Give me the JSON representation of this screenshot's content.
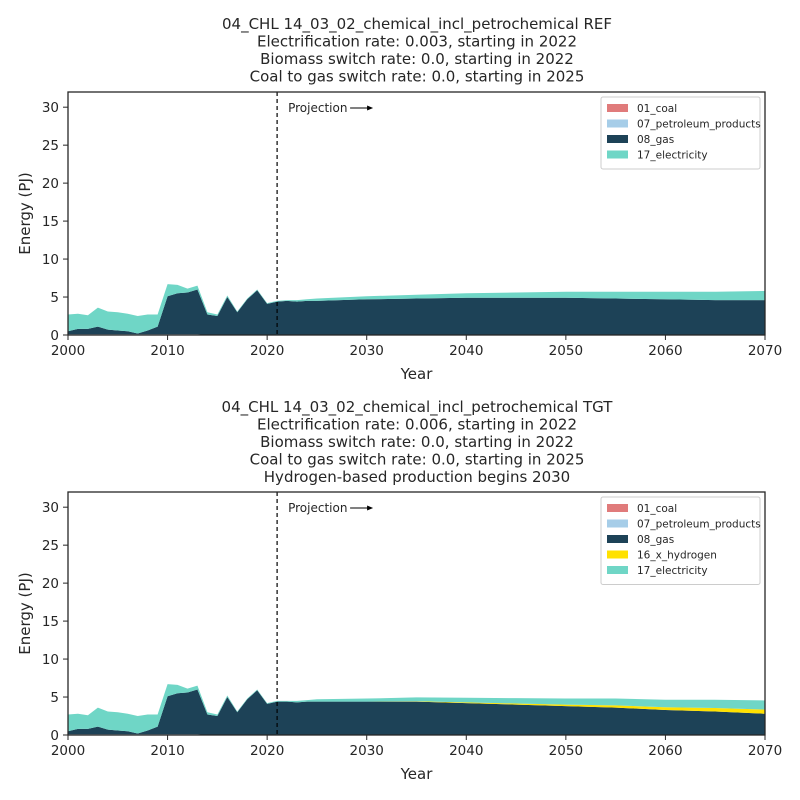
{
  "chart_data": [
    {
      "type": "area",
      "stacked": true,
      "title_lines": [
        "04_CHL 14_03_02_chemical_incl_petrochemical REF",
        "Electrification rate: 0.003, starting in 2022",
        "Biomass switch rate: 0.0, starting in 2022",
        "Coal to gas switch rate: 0.0, starting in 2025"
      ],
      "xlabel": "Year",
      "ylabel": "Energy (PJ)",
      "xlim": [
        2000,
        2070
      ],
      "ylim": [
        0,
        32
      ],
      "xticks": [
        2000,
        2010,
        2020,
        2030,
        2040,
        2050,
        2060,
        2070
      ],
      "yticks": [
        0,
        5,
        10,
        15,
        20,
        25,
        30
      ],
      "projection_year": 2021,
      "projection_label": "Projection",
      "legend_position": "top-right",
      "x": [
        2000,
        2001,
        2002,
        2003,
        2004,
        2005,
        2006,
        2007,
        2008,
        2009,
        2010,
        2011,
        2012,
        2013,
        2014,
        2015,
        2016,
        2017,
        2018,
        2019,
        2020,
        2021,
        2022,
        2023,
        2024,
        2025,
        2030,
        2035,
        2040,
        2045,
        2050,
        2055,
        2060,
        2065,
        2070
      ],
      "series": [
        {
          "name": "01_coal",
          "color": "#e07b7b",
          "values": [
            0,
            0,
            0,
            0,
            0,
            0,
            0,
            0,
            0,
            0,
            0,
            0,
            0,
            0,
            0,
            0,
            0,
            0,
            0,
            0,
            0,
            0,
            0,
            0,
            0,
            0,
            0,
            0,
            0,
            0,
            0,
            0,
            0,
            0,
            0
          ]
        },
        {
          "name": "07_petroleum_products",
          "color": "#a6cde8",
          "values": [
            0.1,
            0.1,
            0.1,
            0.1,
            0.1,
            0.1,
            0.1,
            0.1,
            0.1,
            0.1,
            0.1,
            0.1,
            0.1,
            0.1,
            0,
            0,
            0,
            0,
            0,
            0,
            0,
            0,
            0,
            0,
            0,
            0,
            0,
            0,
            0,
            0,
            0,
            0,
            0,
            0,
            0
          ]
        },
        {
          "name": "08_gas",
          "color": "#1d4257",
          "values": [
            0.4,
            0.7,
            0.7,
            1.0,
            0.6,
            0.5,
            0.4,
            0.1,
            0.5,
            1.0,
            5.0,
            5.4,
            5.5,
            5.9,
            2.7,
            2.5,
            5.0,
            3.0,
            4.7,
            5.9,
            4.1,
            4.4,
            4.5,
            4.4,
            4.5,
            4.5,
            4.7,
            4.8,
            4.9,
            4.9,
            4.9,
            4.8,
            4.7,
            4.6,
            4.6
          ]
        },
        {
          "name": "17_electricity",
          "color": "#6fd6c6",
          "values": [
            2.2,
            2.0,
            1.8,
            2.5,
            2.4,
            2.4,
            2.3,
            2.3,
            2.1,
            1.6,
            1.6,
            1.1,
            0.5,
            0.5,
            0.3,
            0.2,
            0.2,
            0.1,
            0.1,
            0.1,
            0.1,
            0.1,
            0.1,
            0.2,
            0.2,
            0.3,
            0.4,
            0.5,
            0.6,
            0.7,
            0.8,
            0.9,
            1.0,
            1.1,
            1.2
          ]
        }
      ]
    },
    {
      "type": "area",
      "stacked": true,
      "title_lines": [
        "04_CHL 14_03_02_chemical_incl_petrochemical TGT",
        "Electrification rate: 0.006, starting in 2022",
        "Biomass switch rate: 0.0, starting in 2022",
        "Coal to gas switch rate: 0.0, starting in 2025",
        "Hydrogen-based production begins 2030"
      ],
      "xlabel": "Year",
      "ylabel": "Energy (PJ)",
      "xlim": [
        2000,
        2070
      ],
      "ylim": [
        0,
        32
      ],
      "xticks": [
        2000,
        2010,
        2020,
        2030,
        2040,
        2050,
        2060,
        2070
      ],
      "yticks": [
        0,
        5,
        10,
        15,
        20,
        25,
        30
      ],
      "projection_year": 2021,
      "projection_label": "Projection",
      "legend_position": "top-right",
      "x": [
        2000,
        2001,
        2002,
        2003,
        2004,
        2005,
        2006,
        2007,
        2008,
        2009,
        2010,
        2011,
        2012,
        2013,
        2014,
        2015,
        2016,
        2017,
        2018,
        2019,
        2020,
        2021,
        2022,
        2023,
        2024,
        2025,
        2030,
        2035,
        2040,
        2045,
        2050,
        2055,
        2060,
        2065,
        2070
      ],
      "series": [
        {
          "name": "01_coal",
          "color": "#e07b7b",
          "values": [
            0,
            0,
            0,
            0,
            0,
            0,
            0,
            0,
            0,
            0,
            0,
            0,
            0,
            0,
            0,
            0,
            0,
            0,
            0,
            0,
            0,
            0,
            0,
            0,
            0,
            0,
            0,
            0,
            0,
            0,
            0,
            0,
            0,
            0,
            0
          ]
        },
        {
          "name": "07_petroleum_products",
          "color": "#a6cde8",
          "values": [
            0.1,
            0.1,
            0.1,
            0.1,
            0.1,
            0.1,
            0.1,
            0.1,
            0.1,
            0.1,
            0.1,
            0.1,
            0.1,
            0.1,
            0,
            0,
            0,
            0,
            0,
            0,
            0,
            0,
            0,
            0,
            0,
            0,
            0,
            0,
            0,
            0,
            0,
            0,
            0,
            0,
            0
          ]
        },
        {
          "name": "08_gas",
          "color": "#1d4257",
          "values": [
            0.4,
            0.7,
            0.7,
            1.0,
            0.6,
            0.5,
            0.4,
            0.1,
            0.5,
            1.0,
            5.0,
            5.4,
            5.5,
            5.9,
            2.7,
            2.5,
            5.0,
            3.0,
            4.7,
            5.9,
            4.1,
            4.4,
            4.4,
            4.3,
            4.4,
            4.4,
            4.4,
            4.4,
            4.2,
            4.0,
            3.8,
            3.6,
            3.3,
            3.1,
            2.8
          ]
        },
        {
          "name": "16_x_hydrogen",
          "color": "#ffe100",
          "values": [
            0,
            0,
            0,
            0,
            0,
            0,
            0,
            0,
            0,
            0,
            0,
            0,
            0,
            0,
            0,
            0,
            0,
            0,
            0,
            0,
            0,
            0,
            0,
            0,
            0,
            0,
            0,
            0.05,
            0.1,
            0.15,
            0.2,
            0.3,
            0.35,
            0.45,
            0.55
          ]
        },
        {
          "name": "17_electricity",
          "color": "#6fd6c6",
          "values": [
            2.2,
            2.0,
            1.8,
            2.5,
            2.4,
            2.4,
            2.3,
            2.3,
            2.1,
            1.6,
            1.6,
            1.1,
            0.5,
            0.5,
            0.3,
            0.2,
            0.2,
            0.1,
            0.1,
            0.1,
            0.1,
            0.1,
            0.1,
            0.2,
            0.2,
            0.3,
            0.4,
            0.5,
            0.6,
            0.7,
            0.8,
            0.9,
            1.0,
            1.1,
            1.2
          ]
        }
      ]
    }
  ]
}
